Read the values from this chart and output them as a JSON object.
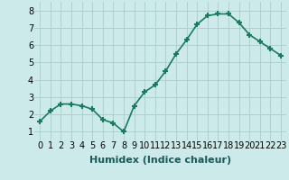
{
  "x": [
    0,
    1,
    2,
    3,
    4,
    5,
    6,
    7,
    8,
    9,
    10,
    11,
    12,
    13,
    14,
    15,
    16,
    17,
    18,
    19,
    20,
    21,
    22,
    23
  ],
  "y": [
    1.6,
    2.2,
    2.6,
    2.6,
    2.5,
    2.3,
    1.7,
    1.5,
    1.0,
    2.5,
    3.3,
    3.7,
    4.5,
    5.5,
    6.3,
    7.2,
    7.7,
    7.8,
    7.8,
    7.3,
    6.6,
    6.2,
    5.8,
    5.4
  ],
  "line_color": "#1a7a5e",
  "marker": "+",
  "marker_size": 5,
  "line_width": 1.2,
  "xlabel": "Humidex (Indice chaleur)",
  "xlabel_fontsize": 8,
  "xlim": [
    -0.5,
    23.5
  ],
  "ylim": [
    0.5,
    8.5
  ],
  "yticks": [
    1,
    2,
    3,
    4,
    5,
    6,
    7,
    8
  ],
  "xtick_labels": [
    "0",
    "1",
    "2",
    "3",
    "4",
    "5",
    "6",
    "7",
    "8",
    "9",
    "10",
    "11",
    "12",
    "13",
    "14",
    "15",
    "16",
    "17",
    "18",
    "19",
    "20",
    "21",
    "22",
    "23"
  ],
  "bg_color": "#cceaea",
  "grid_color": "#aacccc",
  "tick_fontsize": 7,
  "marker_edge_width": 1.5
}
